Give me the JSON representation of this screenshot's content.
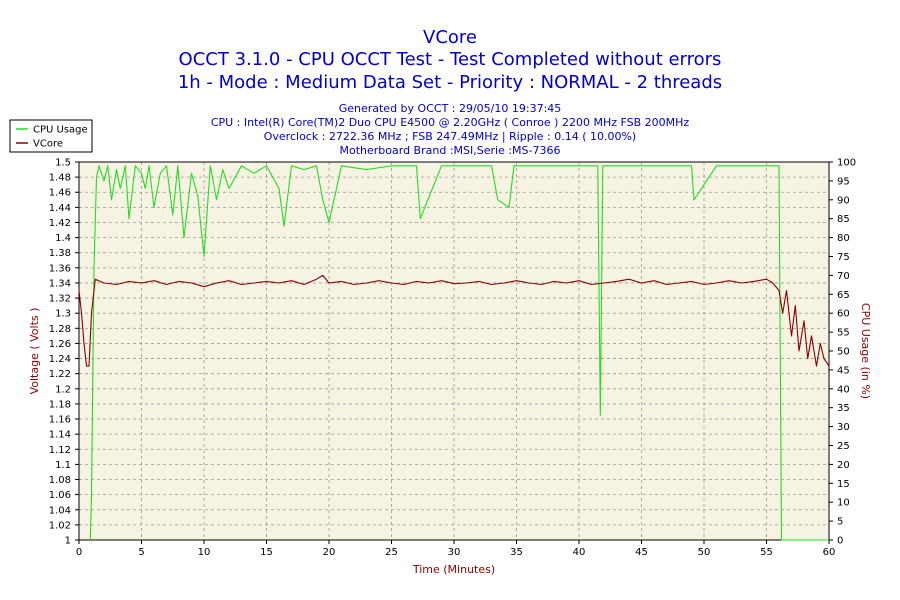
{
  "chart_data": {
    "type": "line",
    "title": "VCore",
    "subtitle_lines": [
      "OCCT 3.1.0 - CPU OCCT Test - Test Completed without errors",
      "1h - Mode : Medium Data Set - Priority : NORMAL - 2 threads"
    ],
    "info_lines": [
      "Generated by OCCT : 29/05/10 19:37:45",
      "CPU : Intel(R) Core(TM)2 Duo CPU E4500 @ 2.20GHz ( Conroe ) 2200 MHz FSB 200MHz",
      "Overclock : 2722.36 MHz ; FSB 247.49MHz | Ripple : 0.14 ( 10.00%)",
      "Motherboard Brand :MSI,Serie :MS-7366"
    ],
    "xlabel": "Time (Minutes)",
    "ylabel_left": "Voltage ( Volts )",
    "ylabel_right": "CPU Usage (in %)",
    "xlim": [
      0,
      60
    ],
    "ylim_left": [
      1,
      1.5
    ],
    "ylim_right": [
      0,
      100
    ],
    "x_ticks": [
      0,
      5,
      10,
      15,
      20,
      25,
      30,
      35,
      40,
      45,
      50,
      55,
      60
    ],
    "y_left_ticks": [
      "1",
      "1.02",
      "1.04",
      "1.06",
      "1.08",
      "1.1",
      "1.12",
      "1.14",
      "1.16",
      "1.18",
      "1.2",
      "1.22",
      "1.24",
      "1.26",
      "1.28",
      "1.3",
      "1.32",
      "1.34",
      "1.36",
      "1.38",
      "1.4",
      "1.42",
      "1.44",
      "1.46",
      "1.48",
      "1.5"
    ],
    "y_right_ticks": [
      0,
      5,
      10,
      15,
      20,
      25,
      30,
      35,
      40,
      45,
      50,
      55,
      60,
      65,
      70,
      75,
      80,
      85,
      90,
      95,
      100
    ],
    "grid": true,
    "legend_position": "top-left",
    "colors": {
      "cpu_usage": "#22dd22",
      "vcore": "#8b0000",
      "plot_bg": "#f7f3e3",
      "grid": "#999999",
      "text": "#0000cc",
      "axis_label": "#8b0000"
    },
    "series": [
      {
        "name": "CPU Usage",
        "axis": "right",
        "x": [
          0.9,
          1.0,
          1.2,
          1.4,
          1.6,
          2.0,
          2.3,
          2.6,
          3.0,
          3.3,
          3.7,
          4.0,
          4.5,
          5.0,
          5.3,
          5.6,
          6.0,
          6.5,
          7.0,
          7.5,
          7.9,
          8.4,
          9.0,
          9.5,
          10.0,
          10.5,
          11.0,
          11.5,
          12.0,
          13.0,
          14.0,
          15.0,
          16.0,
          16.4,
          17.0,
          18.0,
          19.0,
          19.5,
          20.0,
          21.0,
          23.0,
          25.0,
          27.0,
          27.3,
          29.0,
          31.0,
          33.0,
          33.5,
          34.4,
          34.8,
          36.0,
          38.0,
          40.0,
          41.5,
          41.7,
          41.9,
          43.0,
          45.0,
          48.0,
          49.0,
          49.2,
          51.0,
          53.0,
          55.0,
          55.8,
          56.0,
          56.2,
          56.6,
          57.0,
          58.0,
          59.0,
          60.0
        ],
        "values": [
          0,
          12,
          72,
          96,
          99,
          95,
          99,
          90,
          98,
          93,
          99,
          85,
          99,
          97,
          93,
          99,
          88,
          97,
          99,
          86,
          99,
          80,
          97,
          91,
          75,
          99,
          90,
          98,
          93,
          99,
          97,
          99,
          93,
          83,
          99,
          98,
          99,
          90,
          84,
          99,
          98,
          99,
          99,
          85,
          99,
          99,
          99,
          90,
          88,
          99,
          99,
          99,
          99,
          99,
          33,
          99,
          99,
          99,
          99,
          99,
          90,
          99,
          99,
          99,
          99,
          99,
          0,
          0,
          0,
          0,
          0,
          0
        ]
      },
      {
        "name": "VCore",
        "axis": "left",
        "x": [
          0,
          0.2,
          0.4,
          0.6,
          0.8,
          1.0,
          1.3,
          2,
          3,
          4,
          5,
          6,
          7,
          8,
          9,
          10,
          11,
          12,
          13,
          14,
          15,
          16,
          17,
          18,
          19,
          19.5,
          20,
          21,
          22,
          23,
          24,
          25,
          26,
          27,
          28,
          29,
          30,
          31,
          32,
          33,
          34,
          35,
          36,
          37,
          38,
          39,
          40,
          41,
          42,
          43,
          44,
          45,
          46,
          47,
          48,
          49,
          50,
          51,
          52,
          53,
          54,
          55,
          55.5,
          56,
          56.3,
          56.6,
          57,
          57.3,
          57.6,
          58,
          58.3,
          58.6,
          59,
          59.3,
          59.6,
          60
        ],
        "values": [
          1.33,
          1.3,
          1.26,
          1.23,
          1.23,
          1.3,
          1.345,
          1.34,
          1.338,
          1.342,
          1.34,
          1.343,
          1.338,
          1.342,
          1.34,
          1.335,
          1.34,
          1.343,
          1.338,
          1.34,
          1.342,
          1.34,
          1.343,
          1.338,
          1.345,
          1.35,
          1.34,
          1.342,
          1.338,
          1.34,
          1.343,
          1.34,
          1.338,
          1.342,
          1.34,
          1.343,
          1.339,
          1.34,
          1.342,
          1.338,
          1.34,
          1.343,
          1.34,
          1.338,
          1.342,
          1.34,
          1.343,
          1.338,
          1.34,
          1.342,
          1.345,
          1.34,
          1.343,
          1.338,
          1.34,
          1.342,
          1.338,
          1.34,
          1.343,
          1.34,
          1.342,
          1.345,
          1.34,
          1.33,
          1.3,
          1.33,
          1.27,
          1.31,
          1.25,
          1.29,
          1.24,
          1.27,
          1.23,
          1.26,
          1.24,
          1.23
        ]
      }
    ]
  }
}
